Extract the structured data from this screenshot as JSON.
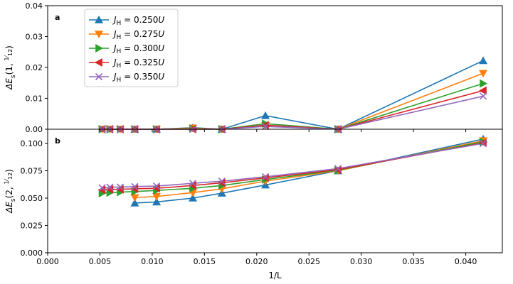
{
  "chart_data": [
    {
      "type": "line",
      "panel": "a",
      "ylabel": "ΔE_s(1, 1/12)",
      "ylabel_main": "ΔE",
      "ylabel_sub": "s",
      "ylabel_args": "(1, ",
      "frac_num": "1",
      "frac_den": "12",
      "ylim": [
        0.0,
        0.04
      ],
      "yticks": [
        0.0,
        0.01,
        0.02,
        0.03,
        0.04
      ],
      "ytick_labels": [
        "0.00",
        "0.01",
        "0.02",
        "0.03",
        "0.04"
      ],
      "xlim": [
        0.0,
        0.0435
      ],
      "reference_line": 0.0,
      "series": [
        {
          "name": "J_H = 0.250U",
          "label_value": "0.250",
          "color": "#1f77b4",
          "marker": "triangle-up",
          "x": [
            0.008333,
            0.010417,
            0.013889,
            0.016667,
            0.020833,
            0.027778,
            0.041667
          ],
          "y": [
            0.0,
            0.0,
            0.0005,
            0.0,
            0.0044,
            0.0,
            0.0222
          ]
        },
        {
          "name": "J_H = 0.275U",
          "label_value": "0.275",
          "color": "#ff7f0e",
          "marker": "triangle-down",
          "x": [
            0.005208,
            0.005952,
            0.006944,
            0.008333,
            0.010417,
            0.013889,
            0.016667,
            0.020833,
            0.027778,
            0.041667
          ],
          "y": [
            0.0,
            0.0,
            0.0,
            0.0,
            0.0,
            0.0004,
            0.0,
            0.0012,
            0.0,
            0.0181
          ]
        },
        {
          "name": "J_H = 0.300U",
          "label_value": "0.300",
          "color": "#2ca02c",
          "marker": "triangle-right",
          "x": [
            0.005208,
            0.005952,
            0.006944,
            0.008333,
            0.010417,
            0.013889,
            0.016667,
            0.020833,
            0.027778,
            0.041667
          ],
          "y": [
            0.0,
            0.0,
            0.0,
            0.0,
            0.0,
            0.0002,
            0.0,
            0.0018,
            0.0,
            0.0148
          ]
        },
        {
          "name": "J_H = 0.325U",
          "label_value": "0.325",
          "color": "#d62728",
          "marker": "triangle-left",
          "x": [
            0.005208,
            0.005952,
            0.006944,
            0.008333,
            0.010417,
            0.013889,
            0.016667,
            0.020833,
            0.027778,
            0.041667
          ],
          "y": [
            0.0,
            0.0,
            0.0,
            0.0,
            0.0,
            0.0,
            0.0,
            0.0013,
            0.0,
            0.0125
          ]
        },
        {
          "name": "J_H = 0.350U",
          "label_value": "0.350",
          "color": "#9467bd",
          "marker": "x",
          "x": [
            0.005208,
            0.005952,
            0.006944,
            0.008333,
            0.010417,
            0.013889,
            0.016667,
            0.020833,
            0.027778,
            0.041667
          ],
          "y": [
            0.0,
            0.0,
            0.0,
            0.0,
            0.0,
            0.0,
            0.0,
            0.0009,
            0.0,
            0.0107
          ]
        }
      ]
    },
    {
      "type": "line",
      "panel": "b",
      "ylabel": "ΔE_s(2, 1/12)",
      "ylabel_main": "ΔE",
      "ylabel_sub": "s",
      "ylabel_args": "(2, ",
      "frac_num": "1",
      "frac_den": "12",
      "ylim": [
        0.0,
        0.113
      ],
      "yticks": [
        0.0,
        0.025,
        0.05,
        0.075,
        0.1
      ],
      "ytick_labels": [
        "0.000",
        "0.025",
        "0.050",
        "0.075",
        "0.100"
      ],
      "xlim": [
        0.0,
        0.0435
      ],
      "xticks": [
        0.0,
        0.005,
        0.01,
        0.015,
        0.02,
        0.025,
        0.03,
        0.035,
        0.04
      ],
      "xtick_labels": [
        "0.000",
        "0.005",
        "0.010",
        "0.015",
        "0.020",
        "0.025",
        "0.030",
        "0.035",
        "0.040"
      ],
      "xlabel": "1/L",
      "series": [
        {
          "name": "J_H = 0.250U",
          "color": "#1f77b4",
          "marker": "triangle-up",
          "x": [
            0.008333,
            0.010417,
            0.013889,
            0.016667,
            0.020833,
            0.027778,
            0.041667
          ],
          "y": [
            0.0455,
            0.0465,
            0.05,
            0.0545,
            0.062,
            0.075,
            0.104
          ]
        },
        {
          "name": "J_H = 0.275U",
          "color": "#ff7f0e",
          "marker": "triangle-down",
          "x": [
            0.008333,
            0.010417,
            0.013889,
            0.016667,
            0.020833,
            0.027778,
            0.041667
          ],
          "y": [
            0.0505,
            0.0515,
            0.055,
            0.0585,
            0.0655,
            0.075,
            0.1025
          ]
        },
        {
          "name": "J_H = 0.300U",
          "color": "#2ca02c",
          "marker": "triangle-right",
          "x": [
            0.005208,
            0.005952,
            0.006944,
            0.008333,
            0.010417,
            0.013889,
            0.016667,
            0.020833,
            0.027778,
            0.041667
          ],
          "y": [
            0.0545,
            0.055,
            0.0555,
            0.056,
            0.057,
            0.059,
            0.0615,
            0.067,
            0.0755,
            0.1015
          ]
        },
        {
          "name": "J_H = 0.325U",
          "color": "#d62728",
          "marker": "triangle-left",
          "x": [
            0.005208,
            0.005952,
            0.006944,
            0.008333,
            0.010417,
            0.013889,
            0.016667,
            0.020833,
            0.027778,
            0.041667
          ],
          "y": [
            0.0575,
            0.058,
            0.058,
            0.0585,
            0.059,
            0.0615,
            0.064,
            0.0685,
            0.076,
            0.1005
          ]
        },
        {
          "name": "J_H = 0.350U",
          "color": "#9467bd",
          "marker": "x",
          "x": [
            0.005208,
            0.005952,
            0.006944,
            0.008333,
            0.010417,
            0.013889,
            0.016667,
            0.020833,
            0.027778,
            0.041667
          ],
          "y": [
            0.0595,
            0.06,
            0.06,
            0.0605,
            0.061,
            0.0635,
            0.0655,
            0.0695,
            0.077,
            0.1
          ]
        }
      ]
    }
  ],
  "legend": {
    "placement": "top-left of panel a",
    "prefix_symbol": "J",
    "prefix_sub": "H",
    "equals": "=",
    "suffix": "U"
  }
}
